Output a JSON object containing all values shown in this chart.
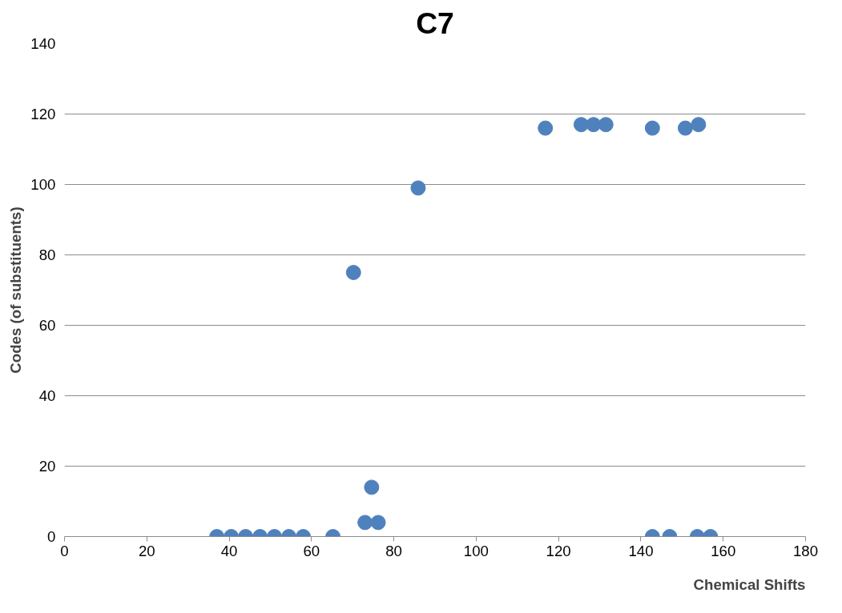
{
  "chart_data": {
    "type": "scatter",
    "title": "C7",
    "xlabel": "Chemical Shifts",
    "ylabel": "Codes (of substituents)",
    "x": [
      37,
      40.5,
      44,
      47.5,
      51,
      54.5,
      58,
      65.2,
      73,
      76.2,
      74.6,
      70.2,
      85.9,
      116.8,
      125.5,
      128.5,
      131.5,
      142.8,
      150.8,
      154,
      142.8,
      147,
      153.7,
      156.9
    ],
    "series": [
      {
        "color": "#4f81bd",
        "values": [
          0,
          0,
          0,
          0,
          0,
          0,
          0,
          0,
          4,
          4,
          14,
          75,
          99,
          116,
          117,
          117,
          117,
          116,
          116,
          117,
          0,
          0,
          0,
          0
        ]
      }
    ],
    "marker": "circle",
    "xlim": [
      0,
      180
    ],
    "ylim": [
      0,
      140
    ],
    "xticks": [
      0,
      20,
      40,
      60,
      80,
      100,
      120,
      140,
      160,
      180
    ],
    "yticks": [
      0,
      20,
      40,
      60,
      80,
      100,
      120,
      140
    ],
    "grid": "y"
  }
}
